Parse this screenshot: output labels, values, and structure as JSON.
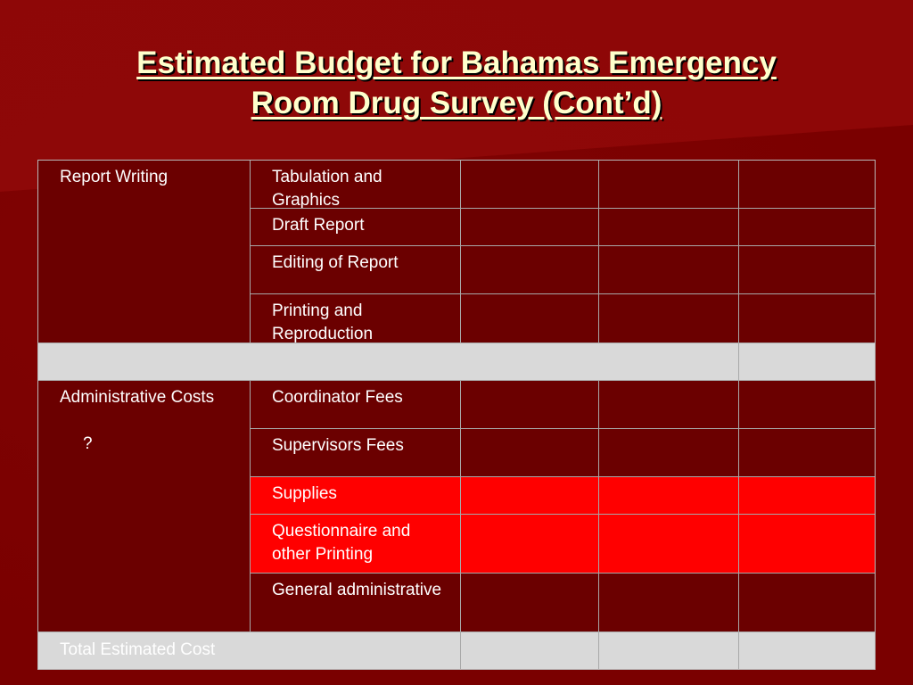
{
  "slide": {
    "title_line1": "Estimated Budget for Bahamas Emergency",
    "title_line2": "Room Drug Survey (Cont’d)"
  },
  "table": {
    "report_writing": {
      "category": "Report Writing",
      "items": [
        "Tabulation and Graphics",
        "Draft Report",
        "Editing of Report",
        "Printing and Reproduction"
      ]
    },
    "administrative": {
      "category": "Administrative Costs",
      "note": "?",
      "items": [
        "Coordinator Fees",
        "Supervisors Fees",
        "Supplies",
        "Questionnaire and other Printing",
        "General administrative"
      ]
    },
    "total_label": "Total Estimated Cost"
  },
  "colors": {
    "background": "#7a0000",
    "title": "#ffffcc",
    "highlight_rows": "#ff0000",
    "separator_rows": "#d9d9d9"
  }
}
